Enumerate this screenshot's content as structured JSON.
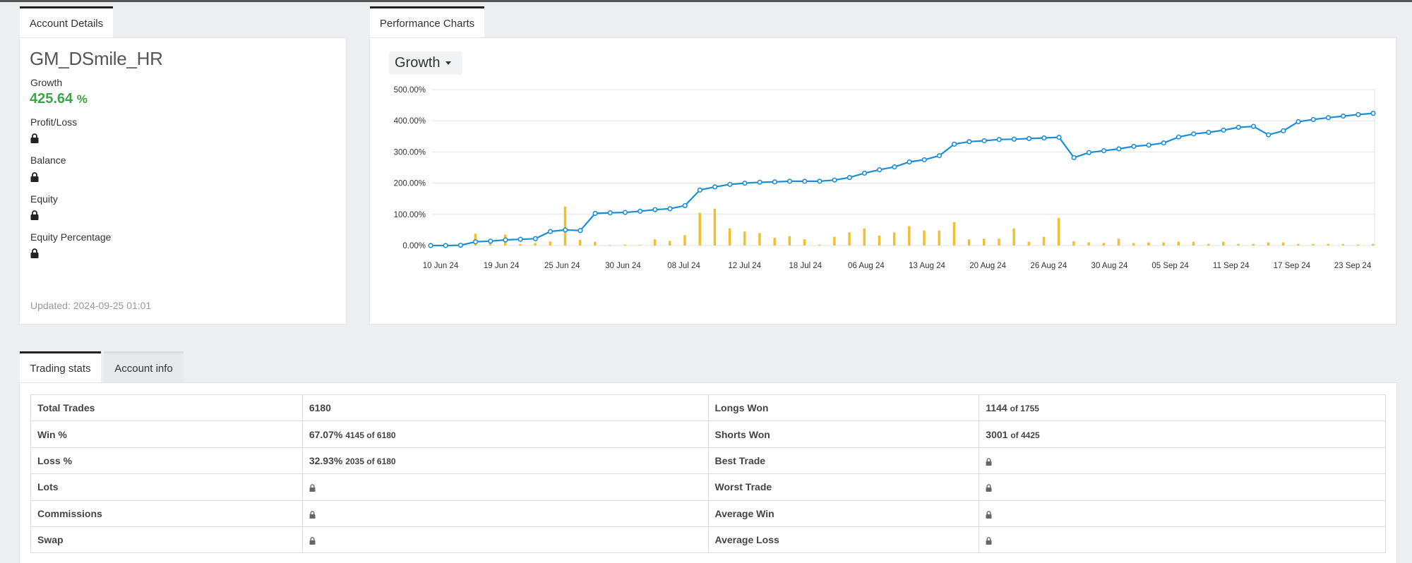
{
  "account_tab": "Account Details",
  "charts_tab": "Performance Charts",
  "account": {
    "name": "GM_DSmile_HR",
    "growth_label": "Growth",
    "growth_value": "425.64",
    "growth_unit": "%",
    "profit_label": "Profit/Loss",
    "balance_label": "Balance",
    "equity_label": "Equity",
    "equity_pct_label": "Equity Percentage",
    "updated": "Updated: 2024-09-25 01:01"
  },
  "chart_selector": "Growth",
  "colors": {
    "line": "#1a8ed6",
    "bar": "#f0c030",
    "growth": "#3ea34a"
  },
  "chart_data": {
    "type": "line",
    "title": "",
    "xlabel": "",
    "ylabel": "",
    "ylim": [
      0,
      500
    ],
    "y_ticks": [
      "0.00%",
      "100.00%",
      "200.00%",
      "300.00%",
      "400.00%",
      "500.00%"
    ],
    "x_tick_labels": [
      "10 Jun 24",
      "19 Jun 24",
      "25 Jun 24",
      "30 Jun 24",
      "08 Jul 24",
      "12 Jul 24",
      "18 Jul 24",
      "06 Aug 24",
      "13 Aug 24",
      "20 Aug 24",
      "26 Aug 24",
      "30 Aug 24",
      "05 Sep 24",
      "11 Sep 24",
      "17 Sep 24",
      "23 Sep 24"
    ],
    "grid": true,
    "series": [
      {
        "type": "line",
        "values": [
          0,
          0,
          1,
          12,
          14,
          18,
          20,
          22,
          45,
          50,
          48,
          103,
          105,
          106,
          110,
          115,
          118,
          128,
          178,
          188,
          196,
          200,
          203,
          204,
          206,
          206,
          206,
          210,
          218,
          232,
          243,
          252,
          268,
          275,
          288,
          325,
          333,
          336,
          340,
          341,
          343,
          345,
          347,
          282,
          298,
          304,
          310,
          318,
          322,
          329,
          348,
          358,
          363,
          370,
          379,
          382,
          355,
          368,
          397,
          404,
          410,
          415,
          420,
          424
        ]
      },
      {
        "type": "bar",
        "values": [
          0,
          0,
          5,
          38,
          10,
          35,
          5,
          8,
          13,
          125,
          18,
          12,
          2,
          3,
          2,
          20,
          15,
          33,
          105,
          118,
          55,
          45,
          40,
          25,
          30,
          20,
          3,
          28,
          42,
          55,
          32,
          42,
          62,
          48,
          48,
          75,
          20,
          22,
          22,
          55,
          12,
          28,
          88,
          14,
          10,
          8,
          22,
          8,
          10,
          10,
          12,
          12,
          5,
          12,
          5,
          5,
          10,
          10,
          5,
          5,
          5,
          5,
          3,
          5
        ]
      }
    ]
  },
  "stats_tabs": [
    "Trading stats",
    "Account info"
  ],
  "stats": {
    "rows": [
      {
        "k1": "Total Trades",
        "v1": "6180",
        "s1": "",
        "k2": "Longs Won",
        "v2": "1144",
        "s2": "of 1755"
      },
      {
        "k1": "Win %",
        "v1": "67.07%",
        "s1": "4145 of 6180",
        "k2": "Shorts Won",
        "v2": "3001",
        "s2": "of 4425"
      },
      {
        "k1": "Loss %",
        "v1": "32.93%",
        "s1": "2035 of 6180",
        "k2": "Best Trade",
        "v2": "",
        "s2": ""
      },
      {
        "k1": "Lots",
        "v1": "",
        "s1": "",
        "k2": "Worst Trade",
        "v2": "",
        "s2": ""
      },
      {
        "k1": "Commissions",
        "v1": "",
        "s1": "",
        "k2": "Average Win",
        "v2": "",
        "s2": ""
      },
      {
        "k1": "Swap",
        "v1": "",
        "s1": "",
        "k2": "Average Loss",
        "v2": "",
        "s2": ""
      }
    ]
  }
}
